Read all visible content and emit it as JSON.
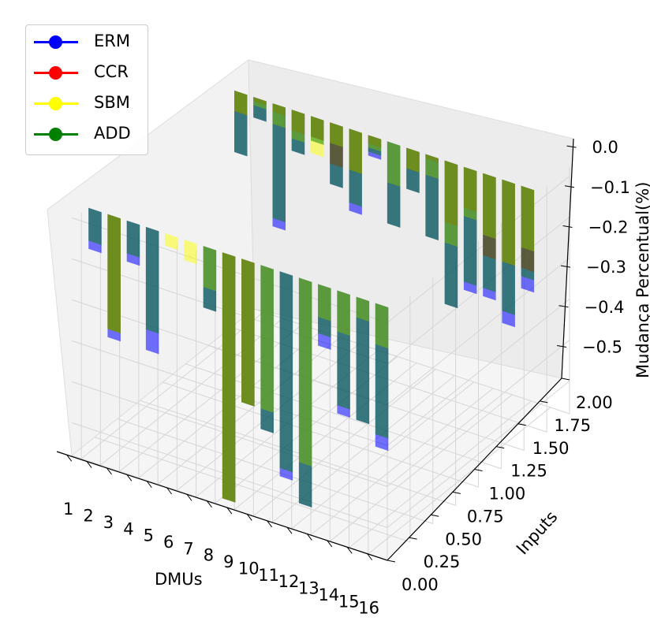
{
  "chart_data": {
    "type": "bar",
    "projection": "3d",
    "xlabel": "DMUs",
    "ylabel": "Inputs",
    "zlabel": "Mudança Percentual(%)",
    "x_ticks": [
      "1",
      "2",
      "3",
      "4",
      "5",
      "6",
      "7",
      "8",
      "9",
      "10",
      "11",
      "12",
      "13",
      "14",
      "15",
      "16"
    ],
    "y_ticks": [
      "0.00",
      "0.25",
      "0.50",
      "0.75",
      "1.00",
      "1.25",
      "1.50",
      "1.75",
      "2.00"
    ],
    "z_ticks": [
      "0.0",
      "−0.1",
      "−0.2",
      "−0.3",
      "−0.4",
      "−0.5"
    ],
    "zlim": [
      -0.58,
      0.02
    ],
    "grid": true,
    "legend_position": "top-left",
    "series": [
      {
        "name": "ERM",
        "color": "#0000ff",
        "input1": [
          -0.1,
          -0.3,
          -0.1,
          -0.3,
          0.0,
          0.0,
          -0.15,
          -0.6,
          -0.35,
          -0.4,
          -0.5,
          -0.55,
          -0.15,
          -0.3,
          -0.3,
          -0.35
        ],
        "input2": [
          -0.15,
          -0.05,
          -0.3,
          -0.1,
          -0.05,
          -0.15,
          -0.2,
          -0.05,
          -0.2,
          -0.1,
          -0.2,
          -0.35,
          -0.3,
          -0.3,
          -0.35,
          -0.25
        ]
      },
      {
        "name": "CCR",
        "color": "#ff0000",
        "input1": [
          0.0,
          -0.28,
          0.0,
          0.0,
          0.0,
          0.0,
          0.0,
          -0.6,
          -0.35,
          0.0,
          0.0,
          0.0,
          0.0,
          0.0,
          0.0,
          0.0
        ],
        "input2": [
          -0.05,
          -0.01,
          -0.02,
          -0.05,
          -0.05,
          -0.1,
          -0.1,
          -0.02,
          0.0,
          -0.05,
          -0.01,
          -0.15,
          -0.1,
          -0.2,
          -0.2,
          -0.2
        ]
      },
      {
        "name": "SBM",
        "color": "#ffff00",
        "input1": [
          0.0,
          -0.28,
          0.0,
          0.0,
          -0.03,
          -0.05,
          -0.1,
          -0.6,
          -0.35,
          -0.35,
          0.0,
          -0.45,
          -0.08,
          -0.1,
          -0.05,
          -0.1
        ],
        "input2": [
          -0.05,
          -0.02,
          -0.05,
          -0.07,
          -0.09,
          -0.05,
          -0.1,
          -0.03,
          -0.1,
          -0.05,
          -0.05,
          -0.2,
          -0.12,
          -0.15,
          -0.2,
          -0.15
        ]
      },
      {
        "name": "ADD",
        "color": "#008000",
        "input1": [
          -0.08,
          -0.28,
          -0.08,
          -0.25,
          0.0,
          0.0,
          -0.15,
          -0.6,
          -0.35,
          -0.4,
          -0.48,
          -0.55,
          -0.12,
          -0.28,
          -0.3,
          -0.32
        ],
        "input2": [
          -0.15,
          -0.05,
          -0.28,
          -0.1,
          -0.06,
          -0.15,
          -0.18,
          -0.04,
          -0.2,
          -0.1,
          -0.2,
          -0.35,
          -0.28,
          -0.28,
          -0.32,
          -0.22
        ]
      }
    ]
  }
}
